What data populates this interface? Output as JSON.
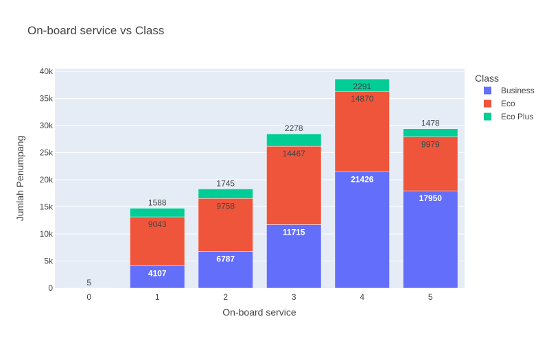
{
  "chart_data": {
    "type": "bar",
    "stacked": true,
    "title": "On-board service vs Class",
    "xlabel": "On-board service",
    "ylabel": "Jumlah Penumpang",
    "categories": [
      "0",
      "1",
      "2",
      "3",
      "4",
      "5"
    ],
    "ylim": [
      0,
      40500
    ],
    "yticks": [
      0,
      5000,
      10000,
      15000,
      20000,
      25000,
      30000,
      35000,
      40000
    ],
    "ytick_labels": [
      "0",
      "5k",
      "10k",
      "15k",
      "20k",
      "25k",
      "30k",
      "35k",
      "40k"
    ],
    "grid": true,
    "legend_title": "Class",
    "legend_position": "top-right",
    "series": [
      {
        "name": "Business",
        "color": "#636efa",
        "values": [
          0,
          4107,
          6787,
          11715,
          21426,
          17950
        ],
        "labels": [
          "",
          "4107",
          "6787",
          "11715",
          "21426",
          "17950"
        ]
      },
      {
        "name": "Eco",
        "color": "#ef553b",
        "values": [
          0,
          9043,
          9758,
          14467,
          14870,
          9979
        ],
        "labels": [
          "",
          "9043",
          "9758",
          "14467",
          "14870",
          "9979"
        ]
      },
      {
        "name": "Eco Plus",
        "color": "#00cc96",
        "values": [
          5,
          1588,
          1745,
          2278,
          2291,
          1478
        ],
        "labels": [
          "5",
          "1588",
          "1745",
          "2278",
          "2291",
          "1478"
        ]
      }
    ]
  }
}
